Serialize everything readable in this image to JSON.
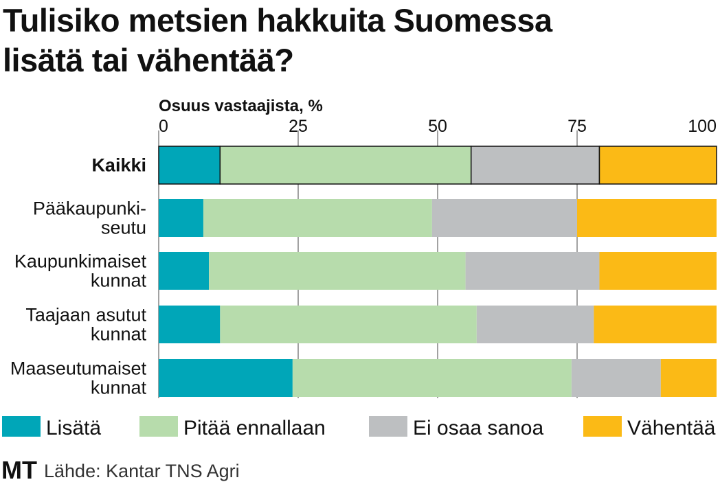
{
  "chart_data": {
    "type": "bar",
    "orientation": "horizontal-stacked",
    "title": "Tulisiko metsien hakkuita Suomessa lisätä tai vähentää?",
    "title_lines": [
      "Tulisiko metsien hakkuita Suomessa",
      "lisätä tai vähentää?"
    ],
    "xlabel": "Osuus vastaajista, %",
    "xlim": [
      0,
      100
    ],
    "xticks": [
      0,
      25,
      50,
      75,
      100
    ],
    "grid": true,
    "categories": [
      {
        "lines": [
          "Kaikki"
        ],
        "bold": true
      },
      {
        "lines": [
          "Pääkaupunki-",
          "seutu"
        ]
      },
      {
        "lines": [
          "Kaupunkimaiset",
          "kunnat"
        ]
      },
      {
        "lines": [
          "Taajaan asutut",
          "kunnat"
        ]
      },
      {
        "lines": [
          "Maaseutumaiset",
          "kunnat"
        ]
      }
    ],
    "series": [
      {
        "name": "Lisätä",
        "color": "#00a6b8",
        "values": [
          11,
          8,
          9,
          11,
          24
        ]
      },
      {
        "name": "Pitää ennallaan",
        "color": "#b7dcac",
        "values": [
          45,
          41,
          46,
          46,
          50
        ]
      },
      {
        "name": "Ei osaa sanoa",
        "color": "#bdbfc1",
        "values": [
          23,
          26,
          24,
          21,
          16
        ]
      },
      {
        "name": "Vähentää",
        "color": "#fbba16",
        "values": [
          21,
          25,
          21,
          22,
          10
        ]
      }
    ],
    "legend_position": "bottom",
    "source": "Lähde: Kantar TNS Agri",
    "logo": "MT"
  }
}
